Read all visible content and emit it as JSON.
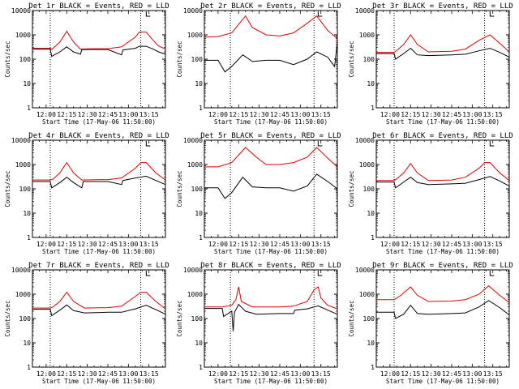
{
  "colors": {
    "events": "#000000",
    "lld": "#e00000",
    "axis": "#000000",
    "background": "#ffffff"
  },
  "chart_data": {
    "type": "line",
    "rows": 3,
    "cols": 3,
    "xlabel": "Start Time (17-May-06 11:50:00)",
    "ylabel": "Counts/sec",
    "yscale": "log",
    "ylim": [
      1,
      10000
    ],
    "y_ticks": [
      1,
      10,
      100,
      1000,
      10000
    ],
    "y_tick_labels": [
      "1",
      "10",
      "100",
      "1000",
      "10000"
    ],
    "xlim": [
      "11:50",
      "13:27"
    ],
    "x_ticks": [
      "12:00",
      "12:15",
      "12:30",
      "12:45",
      "13:00",
      "13:15"
    ],
    "x_tick_labels": [
      "12:00",
      "12:15",
      "12:30",
      "12:45",
      "13:00",
      "13:15"
    ],
    "series_legend": "BLACK = Events, RED = LLD",
    "panels": [
      {
        "title": "Det 1r  BLACK = Events, RED = LLD",
        "markers": [
          "12:03",
          "13:09"
        ],
        "flag": "13:13",
        "series": [
          {
            "color": "lld",
            "x": [
              "11:50",
              "12:03",
              "12:04",
              "12:10",
              "12:15",
              "12:20",
              "12:25",
              "12:33",
              "12:45",
              "12:55",
              "13:05",
              "13:08",
              "13:13",
              "13:18",
              "13:22",
              "13:27"
            ],
            "y": [
              280,
              280,
              250,
              500,
              1400,
              500,
              260,
              270,
              270,
              320,
              800,
              1300,
              1300,
              600,
              350,
              260
            ]
          },
          {
            "color": "events",
            "x": [
              "11:50",
              "12:03",
              "12:04",
              "12:10",
              "12:15",
              "12:20",
              "12:25",
              "12:26",
              "12:33",
              "12:45",
              "12:55",
              "12:56",
              "13:05",
              "13:08",
              "13:13",
              "13:18",
              "13:22",
              "13:27"
            ],
            "y": [
              260,
              260,
              130,
              200,
              320,
              200,
              160,
              250,
              250,
              250,
              150,
              240,
              280,
              340,
              340,
              260,
              200,
              160
            ]
          }
        ]
      },
      {
        "title": "Det 2r  BLACK = Events, RED = LLD",
        "markers": [
          "12:09",
          "13:10"
        ],
        "flag": "13:13",
        "series": [
          {
            "color": "lld",
            "x": [
              "11:50",
              "12:00",
              "12:10",
              "12:20",
              "12:25",
              "12:35",
              "12:45",
              "12:55",
              "13:05",
              "13:12",
              "13:20",
              "13:27"
            ],
            "y": [
              800,
              850,
              1200,
              6000,
              2000,
              1000,
              900,
              1200,
              3000,
              6000,
              1500,
              700
            ]
          },
          {
            "color": "events",
            "x": [
              "11:50",
              "12:00",
              "12:05",
              "12:10",
              "12:18",
              "12:25",
              "12:35",
              "12:45",
              "12:55",
              "13:05",
              "13:12",
              "13:20",
              "13:25",
              "13:27"
            ],
            "y": [
              90,
              90,
              30,
              50,
              150,
              80,
              90,
              90,
              60,
              100,
              200,
              120,
              50,
              500
            ]
          }
        ]
      },
      {
        "title": "Det 3r  BLACK = Events, RED = LLD",
        "markers": [
          "12:03",
          "13:09"
        ],
        "flag": "13:13",
        "series": [
          {
            "color": "lld",
            "x": [
              "11:50",
              "12:03",
              "12:05",
              "12:10",
              "12:15",
              "12:20",
              "12:28",
              "12:45",
              "12:55",
              "13:05",
              "13:13",
              "13:20",
              "13:27"
            ],
            "y": [
              190,
              190,
              230,
              400,
              1000,
              400,
              200,
              210,
              260,
              600,
              1000,
              450,
              200
            ]
          },
          {
            "color": "events",
            "x": [
              "11:50",
              "12:03",
              "12:04",
              "12:10",
              "12:15",
              "12:20",
              "12:28",
              "12:45",
              "12:55",
              "13:05",
              "13:13",
              "13:20",
              "13:27"
            ],
            "y": [
              170,
              170,
              100,
              170,
              280,
              150,
              140,
              150,
              160,
              220,
              280,
              190,
              120
            ]
          }
        ]
      },
      {
        "title": "Det 4r  BLACK = Events, RED = LLD",
        "markers": [
          "12:03",
          "13:09"
        ],
        "flag": "13:13",
        "series": [
          {
            "color": "lld",
            "x": [
              "11:50",
              "12:03",
              "12:05",
              "12:10",
              "12:15",
              "12:20",
              "12:26",
              "12:45",
              "12:55",
              "13:05",
              "13:09",
              "13:13",
              "13:20",
              "13:27"
            ],
            "y": [
              230,
              230,
              250,
              450,
              1200,
              450,
              230,
              240,
              280,
              700,
              1200,
              1200,
              450,
              230
            ]
          },
          {
            "color": "events",
            "x": [
              "11:50",
              "12:03",
              "12:04",
              "12:10",
              "12:15",
              "12:20",
              "12:26",
              "12:27",
              "12:45",
              "12:55",
              "12:56",
              "13:05",
              "13:13",
              "13:20",
              "13:27"
            ],
            "y": [
              200,
              200,
              110,
              180,
              300,
              180,
              110,
              200,
              200,
              150,
              220,
              280,
              330,
              220,
              150
            ]
          }
        ]
      },
      {
        "title": "Det 5r  BLACK = Events, RED = LLD",
        "markers": [
          "12:09",
          "13:10"
        ],
        "flag": "13:13",
        "series": [
          {
            "color": "lld",
            "x": [
              "11:50",
              "12:00",
              "12:10",
              "12:20",
              "12:28",
              "12:35",
              "12:45",
              "12:55",
              "13:05",
              "13:12",
              "13:20",
              "13:27"
            ],
            "y": [
              800,
              800,
              1200,
              5000,
              2000,
              1000,
              1000,
              1200,
              2000,
              5000,
              1800,
              800
            ]
          },
          {
            "color": "events",
            "x": [
              "11:50",
              "12:00",
              "12:05",
              "12:10",
              "12:18",
              "12:25",
              "12:35",
              "12:45",
              "12:55",
              "13:05",
              "13:12",
              "13:20",
              "13:27"
            ],
            "y": [
              110,
              110,
              40,
              70,
              300,
              120,
              110,
              110,
              80,
              130,
              400,
              200,
              100
            ]
          }
        ]
      },
      {
        "title": "Det 6r  BLACK = Events, RED = LLD",
        "markers": [
          "12:03",
          "13:09"
        ],
        "flag": "13:13",
        "series": [
          {
            "color": "lld",
            "x": [
              "11:50",
              "12:03",
              "12:05",
              "12:10",
              "12:15",
              "12:20",
              "12:28",
              "12:45",
              "12:55",
              "13:05",
              "13:09",
              "13:13",
              "13:20",
              "13:27"
            ],
            "y": [
              220,
              220,
              260,
              450,
              1100,
              450,
              220,
              230,
              300,
              700,
              1200,
              1200,
              450,
              220
            ]
          },
          {
            "color": "events",
            "x": [
              "11:50",
              "12:03",
              "12:04",
              "12:10",
              "12:15",
              "12:20",
              "12:28",
              "12:45",
              "12:55",
              "13:05",
              "13:13",
              "13:20",
              "13:27"
            ],
            "y": [
              190,
              190,
              110,
              190,
              300,
              180,
              150,
              160,
              170,
              240,
              320,
              210,
              130
            ]
          }
        ]
      },
      {
        "title": "Det 7r  BLACK = Events, RED = LLD",
        "markers": [
          "12:03",
          "13:09"
        ],
        "flag": "13:13",
        "series": [
          {
            "color": "lld",
            "x": [
              "11:50",
              "12:03",
              "12:05",
              "12:10",
              "12:15",
              "12:20",
              "12:28",
              "12:45",
              "12:55",
              "13:05",
              "13:09",
              "13:13",
              "13:20",
              "13:27"
            ],
            "y": [
              270,
              270,
              300,
              500,
              1200,
              500,
              270,
              280,
              320,
              800,
              1200,
              1200,
              500,
              250
            ]
          },
          {
            "color": "events",
            "x": [
              "11:50",
              "12:03",
              "12:04",
              "12:10",
              "12:15",
              "12:20",
              "12:28",
              "12:45",
              "12:55",
              "13:05",
              "13:13",
              "13:20",
              "13:27"
            ],
            "y": [
              240,
              240,
              130,
              220,
              360,
              210,
              170,
              180,
              180,
              250,
              350,
              230,
              150
            ]
          }
        ]
      },
      {
        "title": "Det 8r  BLACK = Events, RED = LLD",
        "markers": [
          "12:09",
          "13:10"
        ],
        "flag": "13:13",
        "series": [
          {
            "color": "lld",
            "x": [
              "11:50",
              "12:03",
              "12:10",
              "12:13",
              "12:15",
              "12:17",
              "12:25",
              "12:45",
              "12:55",
              "13:05",
              "13:10",
              "13:13",
              "13:15",
              "13:20",
              "13:27"
            ],
            "y": [
              300,
              300,
              350,
              600,
              2000,
              500,
              300,
              300,
              320,
              500,
              1500,
              2000,
              700,
              350,
              250
            ]
          },
          {
            "color": "events",
            "x": [
              "11:50",
              "12:03",
              "12:04",
              "12:10",
              "12:11",
              "12:12",
              "12:15",
              "12:20",
              "12:28",
              "12:45",
              "12:55",
              "12:56",
              "13:05",
              "13:13",
              "13:20",
              "13:27"
            ],
            "y": [
              260,
              260,
              120,
              200,
              30,
              180,
              380,
              200,
              150,
              160,
              160,
              220,
              250,
              330,
              220,
              150
            ]
          }
        ]
      },
      {
        "title": "Det 9r  BLACK = Events, RED = LLD",
        "markers": [
          "12:03",
          "13:09"
        ],
        "flag": "13:13",
        "series": [
          {
            "color": "lld",
            "x": [
              "11:50",
              "12:03",
              "12:08",
              "12:15",
              "12:20",
              "12:28",
              "12:45",
              "12:55",
              "13:05",
              "13:12",
              "13:20",
              "13:27"
            ],
            "y": [
              600,
              600,
              900,
              2000,
              900,
              500,
              520,
              600,
              1000,
              2200,
              900,
              450
            ]
          },
          {
            "color": "events",
            "x": [
              "11:50",
              "12:03",
              "12:04",
              "12:10",
              "12:15",
              "12:20",
              "12:28",
              "12:45",
              "12:55",
              "13:05",
              "13:12",
              "13:20",
              "13:27"
            ],
            "y": [
              180,
              180,
              100,
              150,
              350,
              160,
              150,
              160,
              170,
              300,
              550,
              280,
              140
            ]
          }
        ]
      }
    ]
  }
}
